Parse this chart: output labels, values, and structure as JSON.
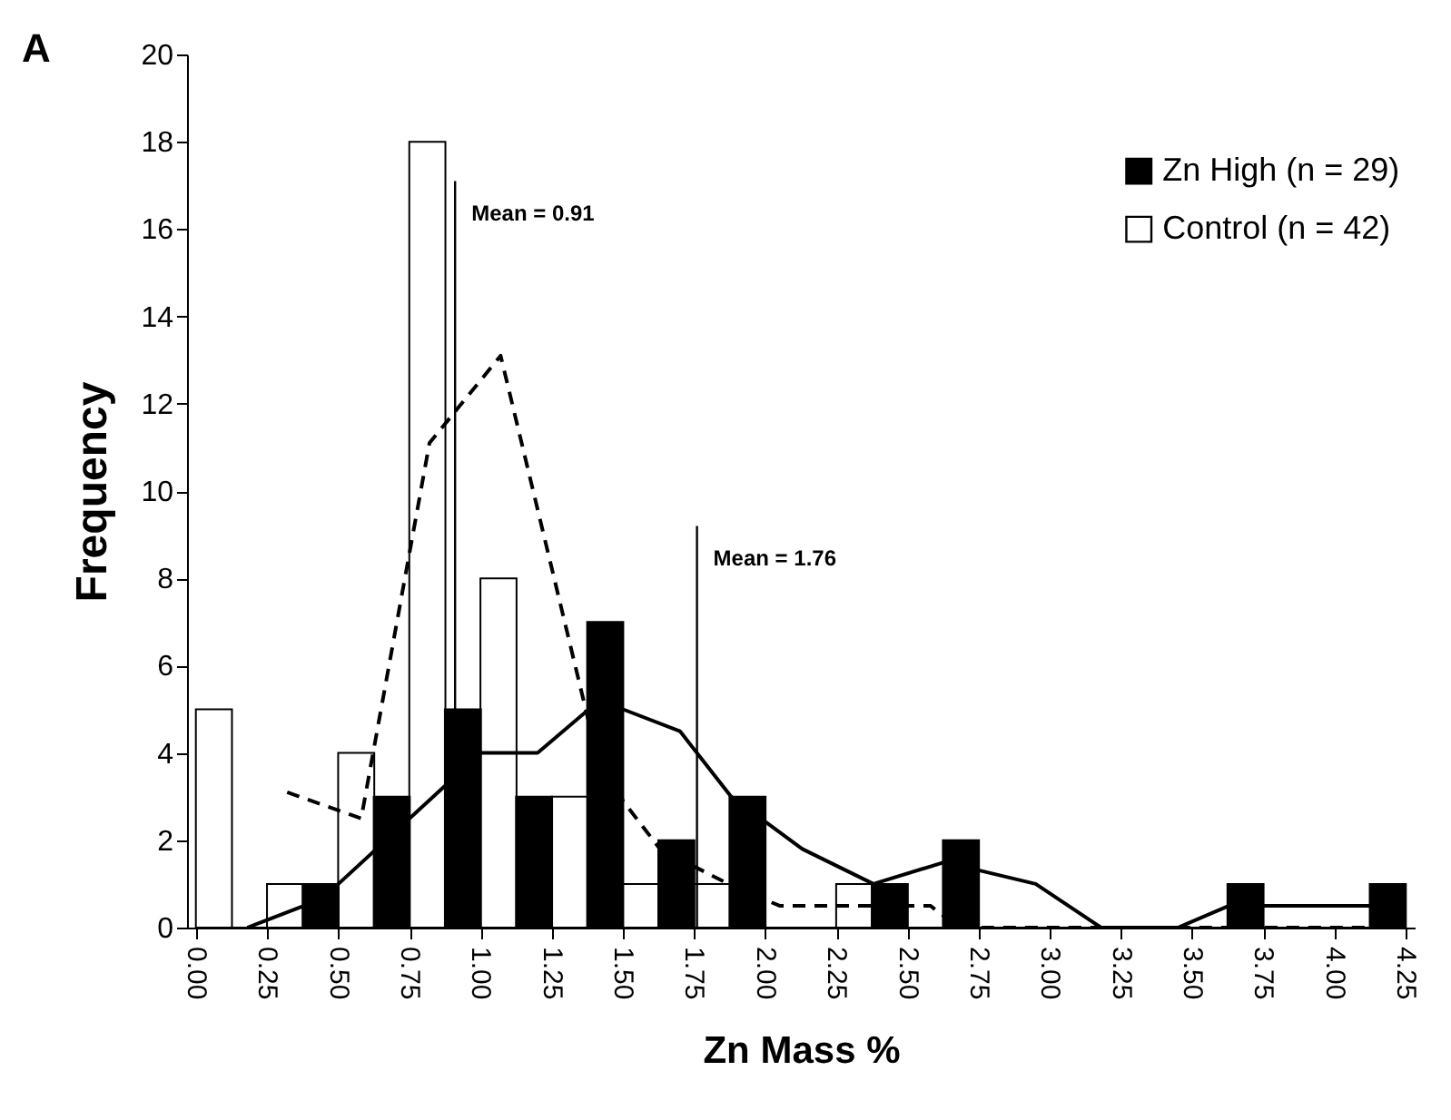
{
  "chart_data": {
    "type": "bar",
    "xlabel": "Zn Mass %",
    "ylabel": "Frequency",
    "annotations": [
      "A"
    ],
    "xlim": [
      0,
      4.25
    ],
    "xticks": [
      {
        "value": 0,
        "label": "0.00"
      },
      {
        "value": 0.25,
        "label": "0.25"
      },
      {
        "value": 0.5,
        "label": "0.50"
      },
      {
        "value": 0.75,
        "label": "0.75"
      },
      {
        "value": 1,
        "label": "1.00"
      },
      {
        "value": 1.25,
        "label": "1.25"
      },
      {
        "value": 1.5,
        "label": "1.50"
      },
      {
        "value": 1.75,
        "label": "1.75"
      },
      {
        "value": 2,
        "label": "2.00"
      },
      {
        "value": 2.25,
        "label": "2.25"
      },
      {
        "value": 2.5,
        "label": "2.50"
      },
      {
        "value": 2.75,
        "label": "2.75"
      },
      {
        "value": 3,
        "label": "3.00"
      },
      {
        "value": 3.25,
        "label": "3.25"
      },
      {
        "value": 3.5,
        "label": "3.50"
      },
      {
        "value": 3.75,
        "label": "3.75"
      },
      {
        "value": 4,
        "label": "4.00"
      },
      {
        "value": 4.25,
        "label": "4.25"
      }
    ],
    "ylim": [
      0,
      20
    ],
    "yticks": [
      0,
      2,
      4,
      6,
      8,
      10,
      12,
      14,
      16,
      18,
      20
    ],
    "grid": false,
    "legend": "top right",
    "series": [
      {
        "name": "Control (n = 42)",
        "type": "bar",
        "color": "#ffffff",
        "x": [
          0.0625,
          0.3125,
          0.5625,
          0.8125,
          1.0625,
          1.3125,
          1.5625,
          1.8125,
          2.0625,
          2.3125,
          2.5625,
          2.8125,
          3.0625,
          3.3125,
          3.5625,
          3.8125,
          4.0625
        ],
        "values": [
          5,
          1,
          4,
          18,
          8,
          3,
          1,
          1,
          0,
          1,
          0,
          0,
          0,
          0,
          0,
          0,
          0
        ]
      },
      {
        "name": "Zn High (n = 29)",
        "type": "bar",
        "color": "#000000",
        "x": [
          0.1875,
          0.4375,
          0.6875,
          0.9375,
          1.1875,
          1.4375,
          1.6875,
          1.9375,
          2.1875,
          2.4375,
          2.6875,
          2.9375,
          3.1875,
          3.4375,
          3.6875,
          3.9375,
          4.1875
        ],
        "values": [
          0,
          1,
          3,
          5,
          3,
          7,
          2,
          3,
          0,
          1,
          2,
          0,
          0,
          0,
          1,
          0,
          1
        ]
      },
      {
        "type": "line",
        "color": "#000000",
        "line_style": "solid",
        "x": [
          0.18,
          0.38,
          0.5,
          0.75,
          1.0,
          1.2,
          1.38,
          1.5,
          1.7,
          1.88,
          2.13,
          2.38,
          2.63,
          2.95,
          3.18,
          3.45,
          3.63,
          3.75,
          4.13,
          4.25
        ],
        "values": [
          0,
          0.5,
          1,
          2.5,
          4,
          4,
          5,
          5,
          4.5,
          3,
          1.8,
          1,
          1.5,
          1,
          0,
          0,
          0.5,
          0.5,
          0.5,
          0.5
        ]
      },
      {
        "type": "line",
        "color": "#000000",
        "line_style": "dashed",
        "x": [
          0.32,
          0.58,
          0.82,
          0.92,
          1.07,
          1.38,
          1.5,
          1.63,
          1.87,
          2.05,
          2.38,
          2.58,
          2.68,
          3.0,
          3.5,
          4.13
        ],
        "values": [
          3.1,
          2.5,
          11.1,
          11.9,
          13.1,
          4.7,
          2.9,
          1.8,
          1,
          0.5,
          0.5,
          0.5,
          0,
          0,
          0,
          0
        ]
      }
    ],
    "ref_lines": [
      {
        "axis": "x",
        "value": 0.91,
        "label": "Mean = 0.91",
        "color": "#000000",
        "line_style": "solid"
      },
      {
        "axis": "x",
        "value": 1.76,
        "label": "Mean = 1.76",
        "color": "#000000",
        "line_style": "solid"
      }
    ]
  }
}
